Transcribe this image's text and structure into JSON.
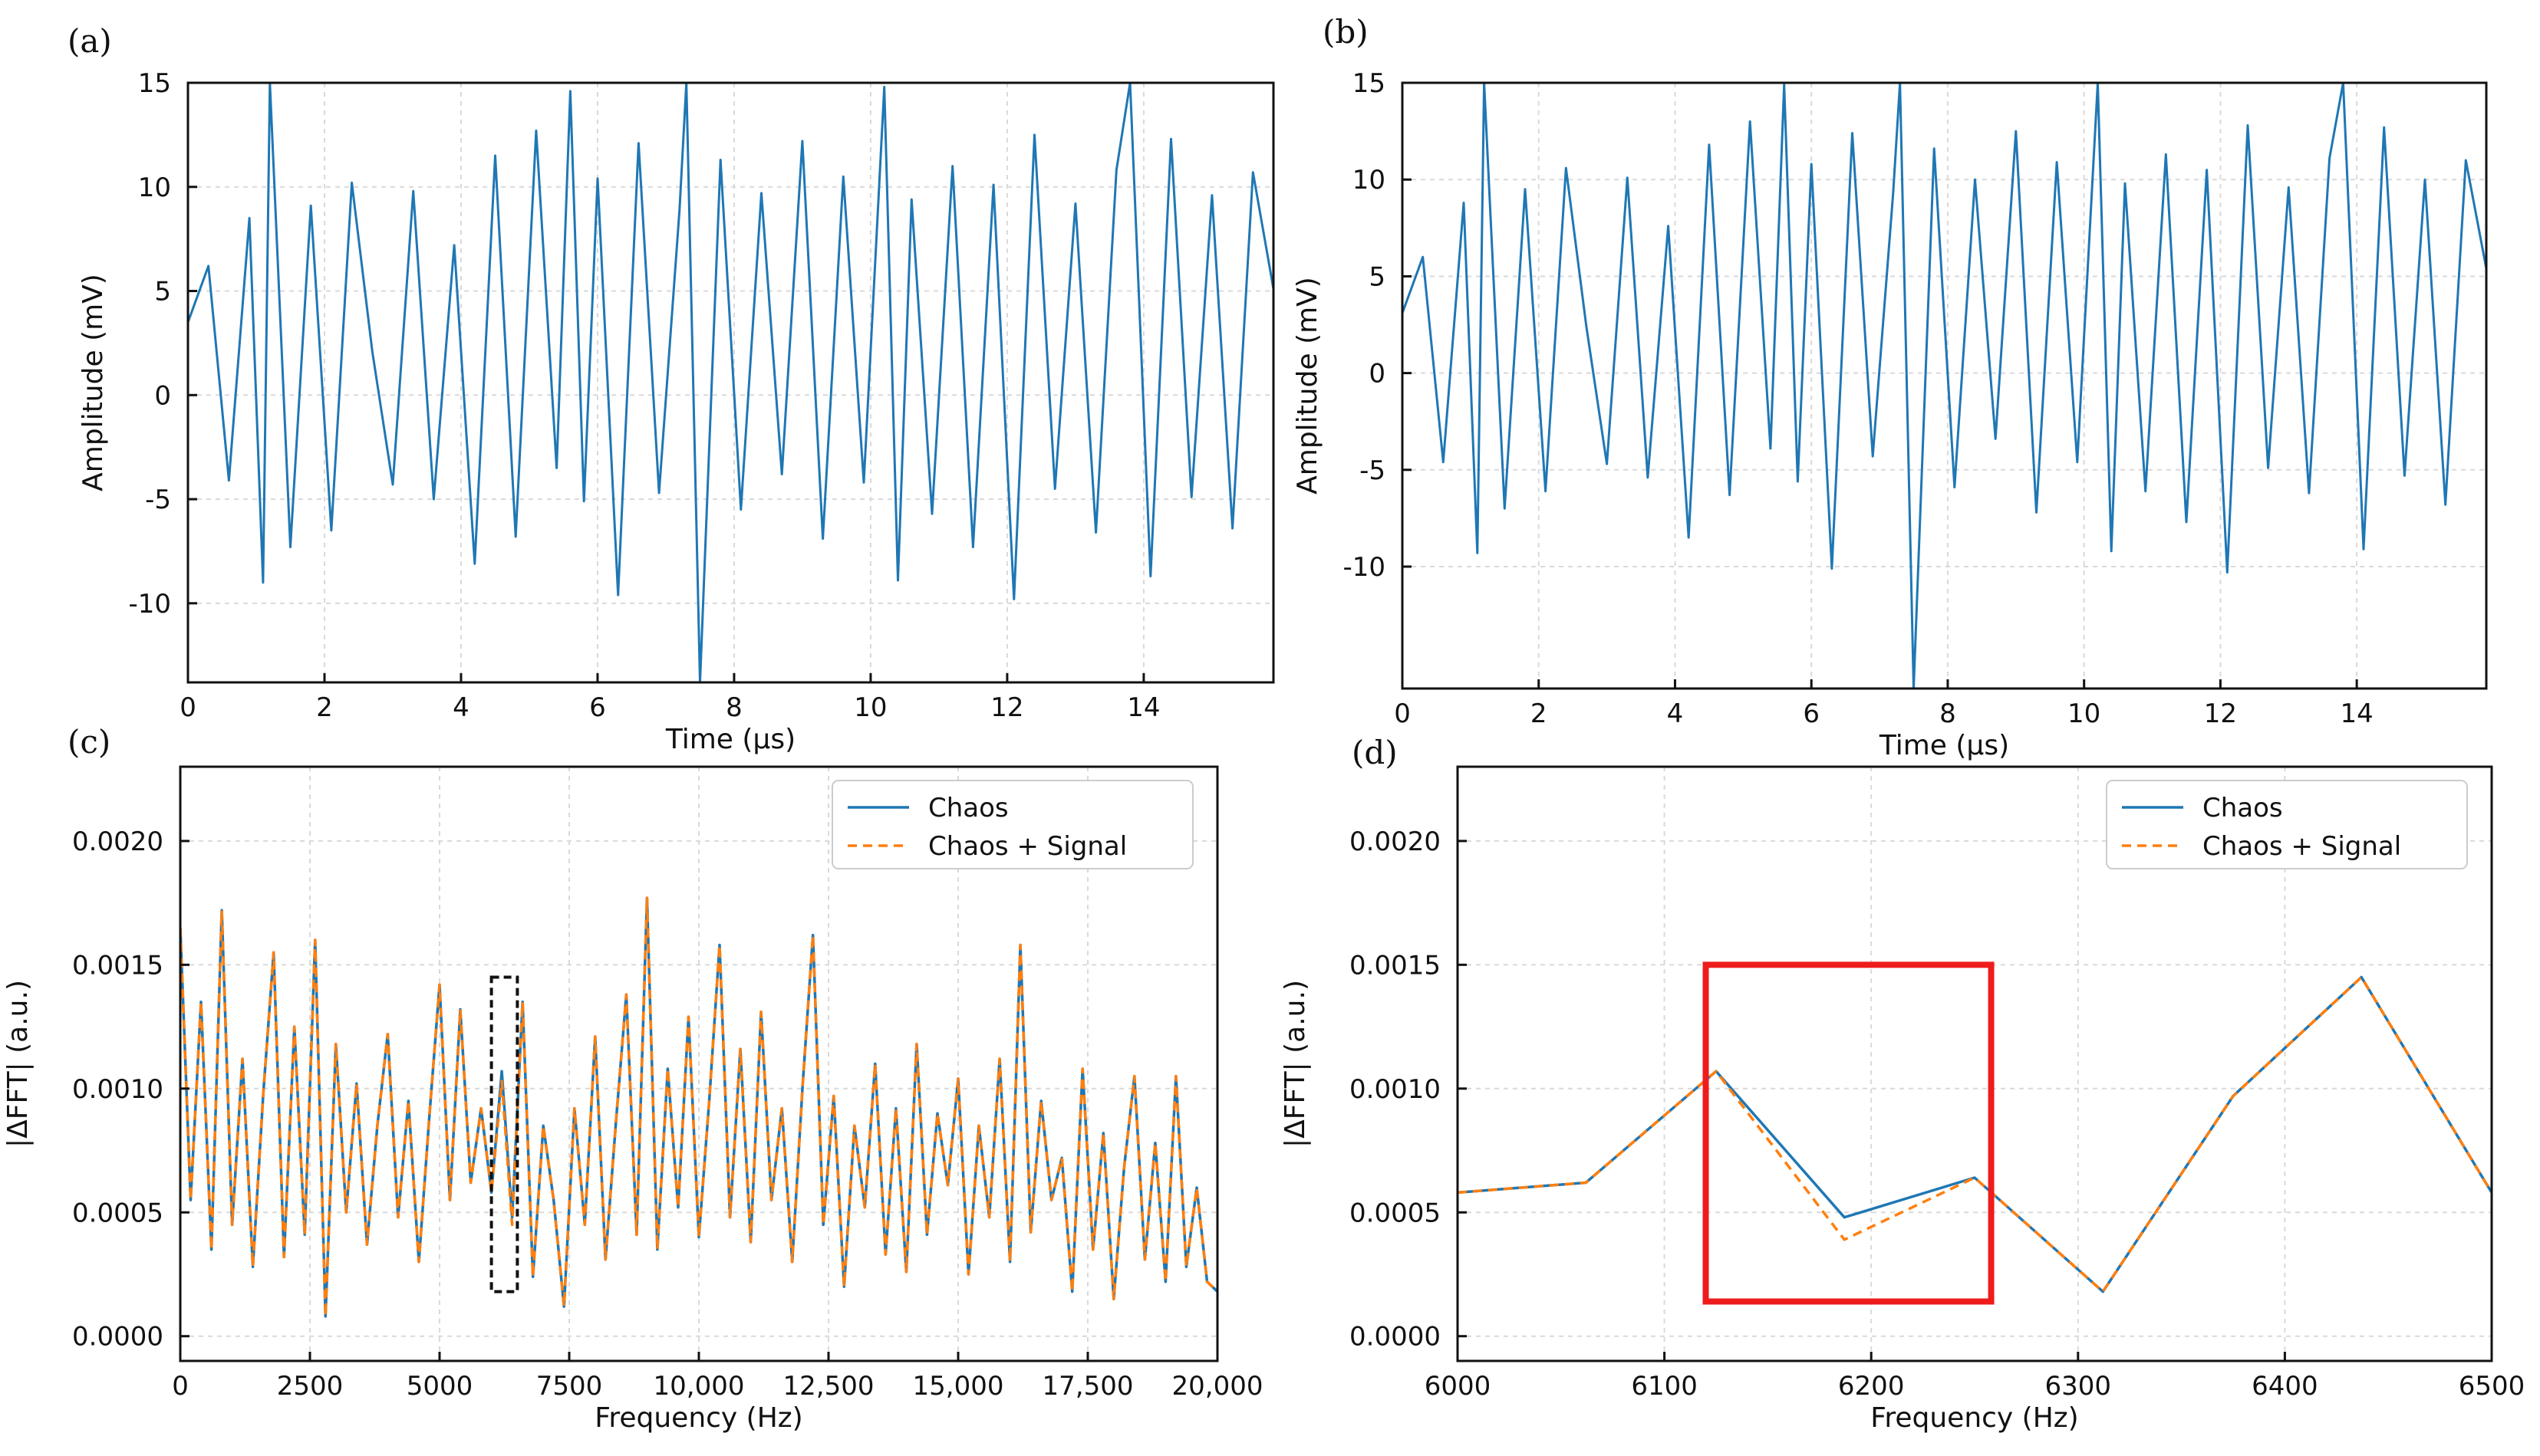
{
  "figure": {
    "panels": [
      "(a)",
      "(b)",
      "(c)",
      "(d)"
    ]
  },
  "colors": {
    "chaos": "#1f77b4",
    "signal": "#ff7f0e",
    "highlight": "#ee1c1c",
    "zoom_box": "#111111",
    "grid": "#d9d9d9",
    "axes": "#111111"
  },
  "chart_data": [
    {
      "panel": "(a)",
      "type": "line",
      "xlabel": "Time (μs)",
      "ylabel": "Amplitude (mV)",
      "xlim": [
        0,
        15.9
      ],
      "ylim": [
        -13.8,
        15
      ],
      "xticks": [
        0,
        2,
        4,
        6,
        8,
        10,
        12,
        14
      ],
      "xtick_labels": [
        "0",
        "2",
        "4",
        "6",
        "8",
        "10",
        "12",
        "14"
      ],
      "yticks": [
        -10,
        -5,
        0,
        5,
        10,
        15
      ],
      "ytick_labels": [
        "-10",
        "-5",
        "0",
        "5",
        "10",
        "15"
      ],
      "grid": true,
      "series": [
        {
          "color": "#1f77b4",
          "style": "solid",
          "x": [
            0.0,
            0.3,
            0.6,
            0.9,
            1.1,
            1.2,
            1.5,
            1.8,
            2.1,
            2.4,
            2.7,
            3.0,
            3.3,
            3.6,
            3.9,
            4.2,
            4.5,
            4.8,
            5.1,
            5.4,
            5.6,
            5.8,
            6.0,
            6.3,
            6.6,
            6.9,
            7.2,
            7.3,
            7.5,
            7.8,
            8.1,
            8.4,
            8.7,
            9.0,
            9.3,
            9.6,
            9.9,
            10.2,
            10.4,
            10.6,
            10.9,
            11.2,
            11.5,
            11.8,
            12.1,
            12.4,
            12.7,
            13.0,
            13.3,
            13.6,
            13.8,
            14.1,
            14.4,
            14.7,
            15.0,
            15.3,
            15.6,
            15.9
          ],
          "y": [
            3.5,
            6.2,
            -4.1,
            8.5,
            -9.0,
            15.0,
            -7.3,
            9.1,
            -6.5,
            10.2,
            2.1,
            -4.3,
            9.8,
            -5.0,
            7.2,
            -8.1,
            11.5,
            -6.8,
            12.7,
            -3.5,
            14.6,
            -5.1,
            10.4,
            -9.6,
            12.1,
            -4.7,
            8.9,
            15.0,
            -13.8,
            11.3,
            -5.5,
            9.7,
            -3.8,
            12.2,
            -6.9,
            10.5,
            -4.2,
            14.8,
            -8.9,
            9.4,
            -5.7,
            11.0,
            -7.3,
            10.1,
            -9.8,
            12.5,
            -4.5,
            9.2,
            -6.6,
            10.8,
            15.0,
            -8.7,
            12.3,
            -4.9,
            9.6,
            -6.4,
            10.7,
            5.1
          ]
        }
      ]
    },
    {
      "panel": "(b)",
      "type": "line",
      "xlabel": "Time (μs)",
      "ylabel": "Amplitude (mV)",
      "xlim": [
        0,
        15.9
      ],
      "ylim": [
        -16.3,
        15
      ],
      "xticks": [
        0,
        2,
        4,
        6,
        8,
        10,
        12,
        14
      ],
      "xtick_labels": [
        "0",
        "2",
        "4",
        "6",
        "8",
        "10",
        "12",
        "14"
      ],
      "yticks": [
        -10,
        -5,
        0,
        5,
        10,
        15
      ],
      "ytick_labels": [
        "-10",
        "-5",
        "0",
        "5",
        "10",
        "15"
      ],
      "grid": true,
      "series": [
        {
          "color": "#1f77b4",
          "style": "solid",
          "x": [
            0.0,
            0.3,
            0.6,
            0.9,
            1.1,
            1.2,
            1.5,
            1.8,
            2.1,
            2.4,
            2.7,
            3.0,
            3.3,
            3.6,
            3.9,
            4.2,
            4.5,
            4.8,
            5.1,
            5.4,
            5.6,
            5.8,
            6.0,
            6.3,
            6.6,
            6.9,
            7.2,
            7.3,
            7.5,
            7.8,
            8.1,
            8.4,
            8.7,
            9.0,
            9.3,
            9.6,
            9.9,
            10.2,
            10.4,
            10.6,
            10.9,
            11.2,
            11.5,
            11.8,
            12.1,
            12.4,
            12.7,
            13.0,
            13.3,
            13.6,
            13.8,
            14.1,
            14.4,
            14.7,
            15.0,
            15.3,
            15.6,
            15.9
          ],
          "y": [
            3.1,
            6.0,
            -4.6,
            8.8,
            -9.3,
            15.0,
            -7.0,
            9.5,
            -6.1,
            10.6,
            2.4,
            -4.7,
            10.1,
            -5.4,
            7.6,
            -8.5,
            11.8,
            -6.3,
            13.0,
            -3.9,
            14.9,
            -5.6,
            10.8,
            -10.1,
            12.4,
            -4.3,
            9.3,
            15.0,
            -16.3,
            11.6,
            -5.9,
            10.0,
            -3.4,
            12.5,
            -7.2,
            10.9,
            -4.6,
            15.0,
            -9.2,
            9.8,
            -6.1,
            11.3,
            -7.7,
            10.5,
            -10.3,
            12.8,
            -4.9,
            9.6,
            -6.2,
            11.1,
            15.0,
            -9.1,
            12.7,
            -5.3,
            10.0,
            -6.8,
            11.0,
            5.4
          ]
        }
      ]
    },
    {
      "panel": "(c)",
      "type": "line",
      "xlabel": "Frequency (Hz)",
      "ylabel": "|ΔFFT| (a.u.)",
      "xlim": [
        0,
        20000
      ],
      "ylim": [
        -0.0001,
        0.0023
      ],
      "xticks": [
        0,
        2500,
        5000,
        7500,
        10000,
        12500,
        15000,
        17500,
        20000
      ],
      "xtick_labels": [
        "0",
        "2500",
        "5000",
        "7500",
        "10,000",
        "12,500",
        "15,000",
        "17,500",
        "20,000"
      ],
      "yticks": [
        0,
        0.0005,
        0.001,
        0.0015,
        0.002
      ],
      "ytick_labels": [
        "0.0000",
        "0.0005",
        "0.0010",
        "0.0015",
        "0.0020"
      ],
      "grid": true,
      "legend": "top-right",
      "annotation": {
        "type": "dashed-box",
        "x": [
          6000,
          6500
        ],
        "y": [
          0.00018,
          0.00145
        ]
      },
      "series": [
        {
          "name": "Chaos",
          "color": "#1f77b4",
          "style": "solid",
          "x": [
            0,
            200,
            400,
            600,
            800,
            1000,
            1200,
            1400,
            1600,
            1800,
            2000,
            2200,
            2400,
            2600,
            2800,
            3000,
            3200,
            3400,
            3600,
            3800,
            4000,
            4200,
            4400,
            4600,
            4800,
            5000,
            5200,
            5400,
            5600,
            5800,
            6000,
            6200,
            6400,
            6600,
            6800,
            7000,
            7200,
            7400,
            7600,
            7800,
            8000,
            8200,
            8400,
            8600,
            8800,
            9000,
            9200,
            9400,
            9600,
            9800,
            10000,
            10200,
            10400,
            10600,
            10800,
            11000,
            11200,
            11400,
            11600,
            11800,
            12000,
            12200,
            12400,
            12600,
            12800,
            13000,
            13200,
            13400,
            13600,
            13800,
            14000,
            14200,
            14400,
            14600,
            14800,
            15000,
            15200,
            15400,
            15600,
            15800,
            16000,
            16200,
            16400,
            16600,
            16800,
            17000,
            17200,
            17400,
            17600,
            17800,
            18000,
            18200,
            18400,
            18600,
            18800,
            19000,
            19200,
            19400,
            19600,
            19800,
            20000
          ],
          "y": [
            0.00165,
            0.00055,
            0.00135,
            0.00035,
            0.00172,
            0.00045,
            0.00112,
            0.00028,
            0.00098,
            0.00155,
            0.00032,
            0.00125,
            0.00041,
            0.0016,
            8e-05,
            0.00118,
            0.0005,
            0.00102,
            0.00037,
            0.00085,
            0.00122,
            0.00048,
            0.00095,
            0.0003,
            0.00088,
            0.00142,
            0.00055,
            0.00132,
            0.00062,
            0.00092,
            0.00058,
            0.00107,
            0.00048,
            0.00135,
            0.00024,
            0.00085,
            0.00055,
            0.00012,
            0.00092,
            0.00045,
            0.00121,
            0.00031,
            0.00086,
            0.00138,
            0.00041,
            0.00177,
            0.00035,
            0.00108,
            0.00052,
            0.00129,
            0.0004,
            0.00095,
            0.00158,
            0.00048,
            0.00116,
            0.00038,
            0.00131,
            0.00055,
            0.00092,
            0.0003,
            0.00101,
            0.00162,
            0.00045,
            0.00097,
            0.0002,
            0.00085,
            0.00052,
            0.0011,
            0.00033,
            0.00092,
            0.00026,
            0.00118,
            0.00041,
            0.0009,
            0.00061,
            0.00104,
            0.00025,
            0.00085,
            0.00048,
            0.00112,
            0.0003,
            0.00158,
            0.00042,
            0.00095,
            0.00055,
            0.00072,
            0.00018,
            0.00108,
            0.00035,
            0.00082,
            0.00015,
            0.00068,
            0.00105,
            0.00031,
            0.00078,
            0.00022,
            0.00105,
            0.00028,
            0.0006,
            0.00022,
            0.00018
          ]
        },
        {
          "name": "Chaos + Signal",
          "color": "#ff7f0e",
          "style": "dashed",
          "x": [
            0,
            200,
            400,
            600,
            800,
            1000,
            1200,
            1400,
            1600,
            1800,
            2000,
            2200,
            2400,
            2600,
            2800,
            3000,
            3200,
            3400,
            3600,
            3800,
            4000,
            4200,
            4400,
            4600,
            4800,
            5000,
            5200,
            5400,
            5600,
            5800,
            6000,
            6200,
            6400,
            6600,
            6800,
            7000,
            7200,
            7400,
            7600,
            7800,
            8000,
            8200,
            8400,
            8600,
            8800,
            9000,
            9200,
            9400,
            9600,
            9800,
            10000,
            10200,
            10400,
            10600,
            10800,
            11000,
            11200,
            11400,
            11600,
            11800,
            12000,
            12200,
            12400,
            12600,
            12800,
            13000,
            13200,
            13400,
            13600,
            13800,
            14000,
            14200,
            14400,
            14600,
            14800,
            15000,
            15200,
            15400,
            15600,
            15800,
            16000,
            16200,
            16400,
            16600,
            16800,
            17000,
            17200,
            17400,
            17600,
            17800,
            18000,
            18200,
            18400,
            18600,
            18800,
            19000,
            19200,
            19400,
            19600,
            19800,
            20000
          ],
          "y": [
            0.00165,
            0.00055,
            0.00135,
            0.00035,
            0.00172,
            0.00045,
            0.00112,
            0.00028,
            0.00098,
            0.00155,
            0.00032,
            0.00125,
            0.00041,
            0.0016,
            8e-05,
            0.00118,
            0.0005,
            0.00102,
            0.00037,
            0.00085,
            0.00122,
            0.00048,
            0.00095,
            0.0003,
            0.00088,
            0.00142,
            0.00055,
            0.00132,
            0.00062,
            0.00092,
            0.00058,
            0.00103,
            0.00045,
            0.00135,
            0.00024,
            0.00085,
            0.00055,
            0.00012,
            0.00092,
            0.00045,
            0.00121,
            0.00031,
            0.00086,
            0.00138,
            0.00041,
            0.00177,
            0.00035,
            0.00108,
            0.00052,
            0.00129,
            0.0004,
            0.00095,
            0.00158,
            0.00048,
            0.00116,
            0.00038,
            0.00131,
            0.00055,
            0.00092,
            0.0003,
            0.00101,
            0.00162,
            0.00045,
            0.00097,
            0.0002,
            0.00085,
            0.00052,
            0.0011,
            0.00033,
            0.00092,
            0.00026,
            0.00118,
            0.00041,
            0.0009,
            0.00061,
            0.00104,
            0.00025,
            0.00085,
            0.00048,
            0.00112,
            0.0003,
            0.00158,
            0.00042,
            0.00095,
            0.00055,
            0.00072,
            0.00018,
            0.00108,
            0.00035,
            0.00082,
            0.00015,
            0.00068,
            0.00105,
            0.00031,
            0.00078,
            0.00022,
            0.00105,
            0.00028,
            0.0006,
            0.00022,
            0.00018
          ]
        }
      ]
    },
    {
      "panel": "(d)",
      "type": "line",
      "xlabel": "Frequency (Hz)",
      "ylabel": "|ΔFFT| (a.u.)",
      "xlim": [
        6000,
        6500
      ],
      "ylim": [
        -0.0001,
        0.0023
      ],
      "xticks": [
        6000,
        6100,
        6200,
        6300,
        6400,
        6500
      ],
      "xtick_labels": [
        "6000",
        "6100",
        "6200",
        "6300",
        "6400",
        "6500"
      ],
      "yticks": [
        0,
        0.0005,
        0.001,
        0.0015,
        0.002
      ],
      "ytick_labels": [
        "0.0000",
        "0.0005",
        "0.0010",
        "0.0015",
        "0.0020"
      ],
      "grid": true,
      "legend": "top-right",
      "annotation": {
        "type": "highlight-box",
        "x": [
          6120,
          6258
        ],
        "y": [
          0.00014,
          0.0015
        ]
      },
      "series": [
        {
          "name": "Chaos",
          "color": "#1f77b4",
          "style": "solid",
          "x": [
            6000,
            6062,
            6125,
            6187,
            6250,
            6312,
            6375,
            6437,
            6500
          ],
          "y": [
            0.00058,
            0.00062,
            0.00107,
            0.00048,
            0.00064,
            0.00018,
            0.00097,
            0.00145,
            0.00058
          ]
        },
        {
          "name": "Chaos + Signal",
          "color": "#ff7f0e",
          "style": "dashed",
          "x": [
            6000,
            6062,
            6125,
            6187,
            6250,
            6312,
            6375,
            6437,
            6500
          ],
          "y": [
            0.00058,
            0.00062,
            0.00107,
            0.00039,
            0.00064,
            0.00018,
            0.00097,
            0.00145,
            0.00058
          ]
        }
      ]
    }
  ]
}
